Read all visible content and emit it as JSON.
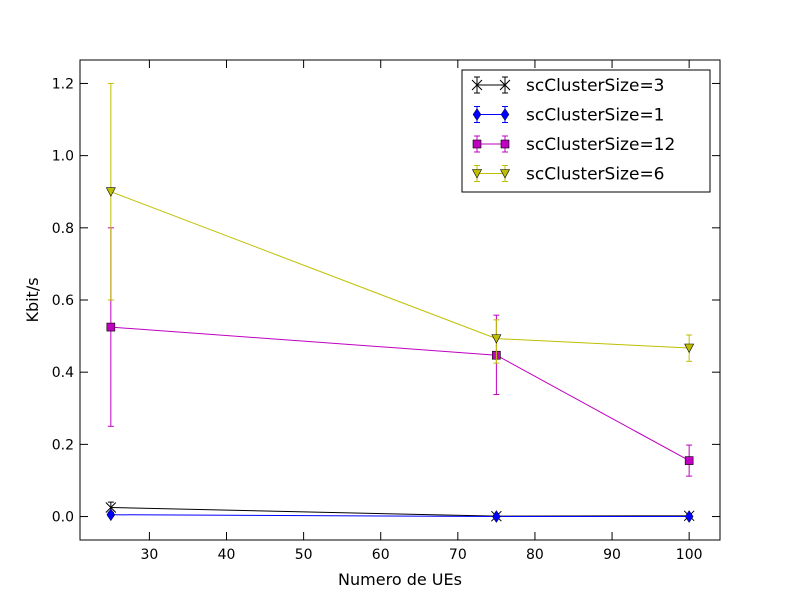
{
  "chart_data": {
    "type": "line",
    "title": "",
    "xlabel": "Numero de UEs",
    "ylabel": "Kbit/s",
    "xlim": [
      21,
      104
    ],
    "ylim": [
      -0.065,
      1.265
    ],
    "xticks": [
      30,
      40,
      50,
      60,
      70,
      80,
      90,
      100
    ],
    "yticks": [
      0.0,
      0.2,
      0.4,
      0.6,
      0.8,
      1.0,
      1.2
    ],
    "ytick_labels": [
      "0.0",
      "0.2",
      "0.4",
      "0.6",
      "0.8",
      "1.0",
      "1.2"
    ],
    "grid": false,
    "legend_position": "upper right",
    "x": [
      25,
      75,
      100
    ],
    "series": [
      {
        "name": "scClusterSize=3",
        "color": "#000000",
        "marker": "x",
        "values": [
          0.025,
          0.001,
          0.002
        ],
        "err_low": [
          0.01,
          0.0,
          0.0
        ],
        "err_high": [
          0.04,
          0.002,
          0.004
        ]
      },
      {
        "name": "scClusterSize=1",
        "color": "#0000ff",
        "marker": "diamond",
        "values": [
          0.005,
          0.0,
          0.0
        ],
        "err_low": [
          0.0,
          -0.003,
          -0.004
        ],
        "err_high": [
          0.012,
          0.003,
          0.004
        ]
      },
      {
        "name": "scClusterSize=12",
        "color": "#bf00bf",
        "marker": "square",
        "values": [
          0.525,
          0.447,
          0.155
        ],
        "err_low": [
          0.25,
          0.338,
          0.112
        ],
        "err_high": [
          0.8,
          0.558,
          0.198
        ]
      },
      {
        "name": "scClusterSize=6",
        "color": "#bfbf00",
        "marker": "triangle-down",
        "values": [
          0.9,
          0.493,
          0.467
        ],
        "err_low": [
          0.6,
          0.425,
          0.43
        ],
        "err_high": [
          1.2,
          0.545,
          0.503
        ]
      }
    ]
  }
}
